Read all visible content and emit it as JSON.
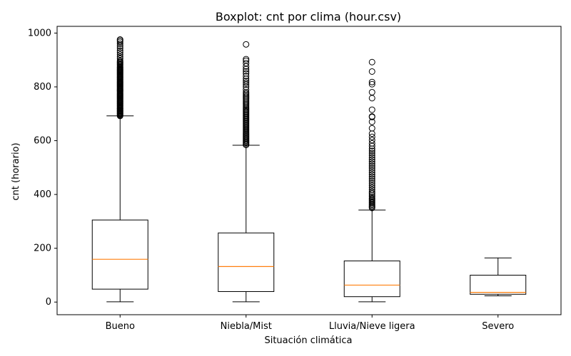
{
  "chart_data": {
    "type": "boxplot",
    "title": "Boxplot: cnt por clima (hour.csv)",
    "xlabel": "Situación climática",
    "ylabel": "cnt (horario)",
    "ylim": [
      -47,
      1025
    ],
    "yticks": [
      0,
      200,
      400,
      600,
      800,
      1000
    ],
    "grid": false,
    "categories": [
      "Bueno",
      "Niebla/Mist",
      "Lluvia/Nieve ligera",
      "Severo"
    ],
    "boxes": [
      {
        "category": "Bueno",
        "whisker_low": 1,
        "q1": 48,
        "median": 159,
        "q3": 305,
        "whisker_high": 692,
        "outliers": [
          692,
          695,
          698,
          700,
          703,
          705,
          708,
          710,
          712,
          715,
          718,
          720,
          722,
          725,
          728,
          730,
          733,
          735,
          738,
          740,
          743,
          745,
          748,
          750,
          753,
          755,
          758,
          760,
          763,
          765,
          768,
          770,
          773,
          775,
          778,
          780,
          783,
          785,
          788,
          790,
          793,
          795,
          798,
          800,
          803,
          805,
          808,
          810,
          813,
          815,
          818,
          820,
          823,
          825,
          828,
          830,
          833,
          835,
          838,
          840,
          843,
          845,
          848,
          850,
          853,
          855,
          858,
          860,
          863,
          865,
          868,
          870,
          873,
          876,
          880,
          883,
          886,
          890,
          893,
          897,
          905,
          912,
          920,
          928,
          935,
          944,
          952,
          960,
          967,
          972,
          976
        ]
      },
      {
        "category": "Niebla/Mist",
        "whisker_low": 1,
        "q1": 39,
        "median": 132,
        "q3": 257,
        "whisker_high": 583,
        "outliers": [
          584,
          588,
          592,
          596,
          600,
          604,
          608,
          612,
          616,
          620,
          624,
          628,
          632,
          636,
          640,
          644,
          648,
          652,
          656,
          660,
          664,
          668,
          672,
          676,
          680,
          684,
          688,
          692,
          696,
          700,
          704,
          708,
          712,
          716,
          720,
          725,
          730,
          735,
          740,
          745,
          750,
          755,
          760,
          765,
          770,
          775,
          780,
          790,
          800,
          808,
          815,
          822,
          830,
          840,
          850,
          858,
          866,
          876,
          888,
          897,
          903,
          958
        ]
      },
      {
        "category": "Lluvia/Nieve ligera",
        "whisker_low": 1,
        "q1": 20,
        "median": 63,
        "q3": 153,
        "whisker_high": 342,
        "outliers": [
          350,
          354,
          358,
          362,
          366,
          370,
          374,
          378,
          382,
          386,
          392,
          398,
          404,
          410,
          418,
          426,
          434,
          442,
          450,
          458,
          466,
          474,
          482,
          490,
          498,
          506,
          514,
          522,
          530,
          538,
          546,
          554,
          562,
          570,
          580,
          590,
          602,
          614,
          626,
          646,
          670,
          688,
          690,
          715,
          758,
          780,
          810,
          818,
          857,
          892
        ]
      },
      {
        "category": "Severo",
        "whisker_low": 23,
        "q1": 29,
        "median": 36,
        "q3": 100,
        "whisker_high": 164,
        "outliers": []
      }
    ],
    "colors": {
      "box": "#000000",
      "median": "#ff7f0e",
      "outlier": "#000000"
    }
  }
}
